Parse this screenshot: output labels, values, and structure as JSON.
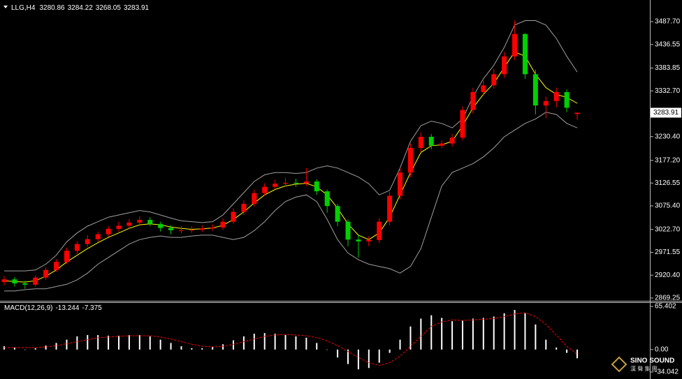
{
  "chart_data": [
    {
      "type": "candlestick",
      "title": "LLG,H4",
      "up_color": "#ff0000",
      "down_color": "#00d000",
      "open": [
        2905,
        2911,
        2902,
        2899,
        2915,
        2932,
        2950,
        2975,
        2990,
        3001,
        3012,
        3024,
        3031,
        3038,
        3044,
        3035,
        3026,
        3021,
        3021,
        3022,
        3025,
        3027,
        3040,
        3062,
        3080,
        3104,
        3118,
        3125,
        3127,
        3126,
        3130,
        3108,
        3075,
        3040,
        3000,
        2996,
        2999,
        3040,
        3098,
        3150,
        3205,
        3230,
        3210,
        3215,
        3228,
        3290,
        3330,
        3345,
        3370,
        3410,
        3460,
        3370,
        3300,
        3310,
        3330,
        3280.86
      ],
      "high": [
        2918,
        2916,
        2908,
        2920,
        2938,
        2956,
        2982,
        2996,
        3010,
        3018,
        3030,
        3040,
        3046,
        3052,
        3050,
        3040,
        3032,
        3030,
        3030,
        3032,
        3034,
        3048,
        3070,
        3088,
        3112,
        3126,
        3134,
        3138,
        3136,
        3160,
        3135,
        3112,
        3080,
        3045,
        3010,
        3008,
        3048,
        3106,
        3160,
        3215,
        3240,
        3236,
        3222,
        3236,
        3298,
        3340,
        3356,
        3382,
        3420,
        3490,
        3462,
        3380,
        3320,
        3340,
        3336,
        3284.22
      ],
      "low": [
        2898,
        2895,
        2890,
        2895,
        2910,
        2928,
        2945,
        2968,
        2984,
        2995,
        3006,
        3018,
        3025,
        3032,
        3030,
        3018,
        3012,
        3014,
        3015,
        3017,
        3020,
        3022,
        3035,
        3055,
        3074,
        3098,
        3112,
        3118,
        3118,
        3120,
        3100,
        3060,
        3030,
        2985,
        2960,
        2985,
        2992,
        3032,
        3090,
        3140,
        3195,
        3202,
        3205,
        3208,
        3222,
        3282,
        3322,
        3338,
        3362,
        3402,
        3360,
        3280,
        3272,
        3296,
        3285,
        3268.05
      ],
      "close": [
        2911,
        2902,
        2899,
        2915,
        2932,
        2950,
        2975,
        2990,
        3001,
        3012,
        3024,
        3031,
        3038,
        3044,
        3035,
        3026,
        3021,
        3021,
        3022,
        3025,
        3027,
        3040,
        3062,
        3080,
        3104,
        3118,
        3125,
        3127,
        3126,
        3130,
        3108,
        3075,
        3040,
        3000,
        2996,
        2999,
        3040,
        3098,
        3150,
        3205,
        3230,
        3210,
        3215,
        3228,
        3290,
        3330,
        3345,
        3370,
        3410,
        3460,
        3370,
        3300,
        3310,
        3330,
        3295,
        3283.91
      ],
      "lines": [
        {
          "color": "#a0a0a0",
          "values": [
            2930,
            2930,
            2930,
            2932,
            2945,
            2965,
            2995,
            3015,
            3030,
            3040,
            3050,
            3055,
            3060,
            3065,
            3062,
            3055,
            3048,
            3042,
            3040,
            3038,
            3040,
            3055,
            3080,
            3105,
            3130,
            3145,
            3150,
            3150,
            3148,
            3150,
            3160,
            3165,
            3160,
            3150,
            3140,
            3125,
            3100,
            3110,
            3160,
            3220,
            3255,
            3265,
            3260,
            3250,
            3270,
            3320,
            3360,
            3390,
            3430,
            3480,
            3490,
            3490,
            3480,
            3450,
            3410,
            3375
          ]
        },
        {
          "color": "#a0a0a0",
          "values": [
            2885,
            2885,
            2888,
            2890,
            2890,
            2895,
            2900,
            2910,
            2925,
            2945,
            2960,
            2975,
            2990,
            3000,
            3005,
            3008,
            3005,
            3005,
            3008,
            3010,
            3010,
            3005,
            3000,
            3005,
            3020,
            3040,
            3065,
            3085,
            3095,
            3100,
            3085,
            3045,
            3000,
            2970,
            2955,
            2945,
            2940,
            2935,
            2925,
            2940,
            2980,
            3050,
            3120,
            3150,
            3160,
            3170,
            3185,
            3205,
            3230,
            3245,
            3260,
            3270,
            3285,
            3280,
            3260,
            3250
          ]
        },
        {
          "color": "#ffff00",
          "values": [
            2908,
            2906,
            2905,
            2908,
            2918,
            2932,
            2950,
            2965,
            2980,
            2993,
            3005,
            3015,
            3025,
            3033,
            3035,
            3033,
            3028,
            3025,
            3023,
            3024,
            3026,
            3032,
            3045,
            3062,
            3082,
            3100,
            3112,
            3120,
            3124,
            3126,
            3118,
            3100,
            3070,
            3035,
            3010,
            3000,
            3015,
            3050,
            3100,
            3150,
            3195,
            3210,
            3212,
            3220,
            3255,
            3295,
            3325,
            3350,
            3385,
            3420,
            3410,
            3370,
            3340,
            3325,
            3318,
            3305
          ]
        }
      ],
      "ylim": [
        2861.4,
        3536.1
      ],
      "yticks": [
        {
          "value": 3487.7,
          "label": "3487.70"
        },
        {
          "value": 3436.55,
          "label": "3436.55"
        },
        {
          "value": 3383.85,
          "label": "3383.85"
        },
        {
          "value": 3332.7,
          "label": "3332.70"
        },
        {
          "value": 3230.4,
          "label": "3230.40"
        },
        {
          "value": 3177.2,
          "label": "3177.20"
        },
        {
          "value": 3126.55,
          "label": "3126.55"
        },
        {
          "value": 3075.4,
          "label": "3075.40"
        },
        {
          "value": 3022.7,
          "label": "3022.70"
        },
        {
          "value": 2971.55,
          "label": "2971.55"
        },
        {
          "value": 2920.4,
          "label": "2920.40"
        },
        {
          "value": 2869.25,
          "label": "2869.25"
        }
      ]
    },
    {
      "type": "macd",
      "title": "MACD(12,26,9)",
      "color": "#ffffff",
      "values": [
        5,
        3,
        0,
        2,
        6,
        10,
        15,
        20,
        22,
        22,
        21,
        21,
        22,
        22,
        20,
        15,
        10,
        5,
        2,
        2,
        4,
        8,
        14,
        20,
        24,
        25,
        24,
        22,
        20,
        18,
        10,
        0,
        -12,
        -22,
        -30,
        -28,
        -20,
        -5,
        15,
        35,
        47,
        52,
        48,
        43,
        44,
        47,
        48,
        50,
        55,
        60,
        55,
        38,
        15,
        3,
        -5,
        -13.244
      ],
      "signal": {
        "color": "#ff0000",
        "values": [
          3,
          3,
          3,
          3,
          4,
          6,
          9,
          12,
          15,
          18,
          19,
          20,
          21,
          21,
          21,
          19,
          16,
          12,
          8,
          5,
          4,
          5,
          8,
          12,
          16,
          20,
          22,
          23,
          22,
          21,
          18,
          13,
          6,
          -3,
          -12,
          -20,
          -24,
          -20,
          -10,
          5,
          20,
          35,
          42,
          45,
          44,
          45,
          46,
          47,
          50,
          54,
          56,
          50,
          38,
          22,
          5,
          -7.375
        ]
      },
      "ylim": [
        -34.042,
        65.402
      ],
      "yticks": [
        {
          "value": 65.402,
          "label": "65.402"
        },
        {
          "value": 0,
          "label": "0.00"
        },
        {
          "value": -34.042,
          "label": "-34.042"
        }
      ]
    }
  ],
  "logo": {
    "name": "SINO SOUND",
    "subtitle": "漢 聲 集 團"
  }
}
